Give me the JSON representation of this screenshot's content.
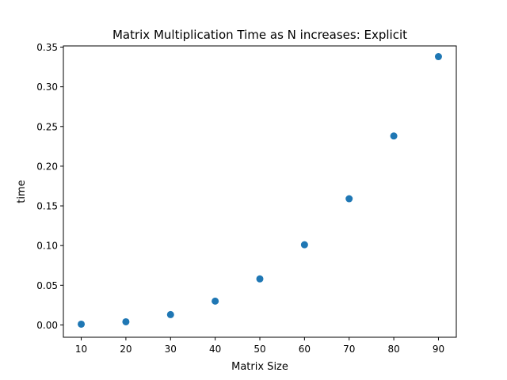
{
  "chart_data": {
    "type": "scatter",
    "title": "Matrix Multiplication Time as N increases: Explicit",
    "xlabel": "Matrix Size",
    "ylabel": "time",
    "xlim": [
      6,
      94
    ],
    "ylim": [
      -0.0155,
      0.3515
    ],
    "x_ticks": [
      10,
      20,
      30,
      40,
      50,
      60,
      70,
      80,
      90
    ],
    "x_tick_labels": [
      "10",
      "20",
      "30",
      "40",
      "50",
      "60",
      "70",
      "80",
      "90"
    ],
    "y_ticks": [
      0.0,
      0.05,
      0.1,
      0.15,
      0.2,
      0.25,
      0.3,
      0.35
    ],
    "y_tick_labels": [
      "0.00",
      "0.05",
      "0.10",
      "0.15",
      "0.20",
      "0.25",
      "0.30",
      "0.35"
    ],
    "grid": false,
    "marker_color": "#1f77b4",
    "x": [
      10,
      20,
      30,
      40,
      50,
      60,
      70,
      80,
      90
    ],
    "y": [
      0.001,
      0.004,
      0.013,
      0.03,
      0.058,
      0.101,
      0.159,
      0.238,
      0.338
    ]
  }
}
